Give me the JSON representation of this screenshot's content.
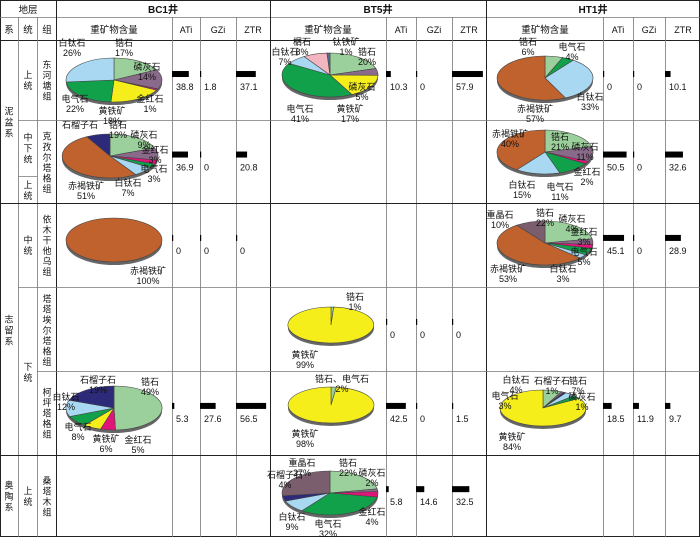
{
  "header": {
    "strata": "地层",
    "system": "系",
    "series": "统",
    "group": "组",
    "wells": [
      "BC1井",
      "BT5井",
      "HT1井"
    ],
    "content_label": "重矿物含量",
    "idx": [
      "ATi",
      "GZi",
      "ZTR"
    ]
  },
  "systems": [
    {
      "id": "ni",
      "text": "泥盆系"
    },
    {
      "id": "zhi",
      "text": "志留系"
    },
    {
      "id": "ao",
      "text": "奥陶系"
    }
  ],
  "series_cells": [
    {
      "id": "shang1",
      "text": "上统"
    },
    {
      "id": "zhongxia",
      "text": "中下统"
    },
    {
      "id": "shang2",
      "text": "上统"
    },
    {
      "id": "zhong",
      "text": "中统"
    },
    {
      "id": "xia",
      "text": "下统"
    },
    {
      "id": "shang3",
      "text": "上统"
    }
  ],
  "groups": [
    {
      "id": "g1",
      "text": "东河塘组"
    },
    {
      "id": "g2",
      "text": "克孜尔塔格组"
    },
    {
      "id": "g3",
      "text": "依木干他乌组"
    },
    {
      "id": "g4",
      "text": "塔塔埃尔塔格组"
    },
    {
      "id": "g5",
      "text": "柯坪塔格组"
    },
    {
      "id": "g6",
      "text": "桑塔木组"
    }
  ],
  "legend_colors": {
    "锆石": "#9bcf9b",
    "磷灰石": "#8a6a8a",
    "金红石": "#e0157a",
    "黄铁矿": "#f5ee1a",
    "电气石": "#11a14a",
    "白钛石": "#a9d8f2",
    "赤褐铁矿": "#c0622e",
    "石榴子石": "#2d2a7a",
    "钛铁矿": "#5b6a8a",
    "榍石": "#f2b6c0",
    "重晶石": "#7a5e6e"
  },
  "chart_data": [
    {
      "type": "pie",
      "id": "BC1_东河塘组",
      "well": "BC1井",
      "group": "东河塘组",
      "slices": [
        {
          "label": "锆石",
          "value": 17,
          "text": "17%"
        },
        {
          "label": "磷灰石",
          "value": 14,
          "text": "14%"
        },
        {
          "label": "金红石",
          "value": 1,
          "text": "1%"
        },
        {
          "label": "黄铁矿",
          "value": 18,
          "text": "18%"
        },
        {
          "label": "电气石",
          "value": 22,
          "text": "22%"
        },
        {
          "label": "白钛石",
          "value": 26,
          "text": "26%"
        }
      ],
      "indices": {
        "ATi": 38.8,
        "GZi": 1.8,
        "ZTR": 37.1
      }
    },
    {
      "type": "pie",
      "id": "BT5_东河塘组",
      "well": "BT5井",
      "group": "东河塘组",
      "slices": [
        {
          "label": "锆石",
          "value": 20,
          "text": "20%"
        },
        {
          "label": "磷灰石",
          "value": 5,
          "text": "5%"
        },
        {
          "label": "黄铁矿",
          "value": 17,
          "text": "17%"
        },
        {
          "label": "电气石",
          "value": 41,
          "text": "41%"
        },
        {
          "label": "白钛石",
          "value": 7,
          "text": "7%"
        },
        {
          "label": "榍石",
          "value": 8,
          "text": "8%"
        },
        {
          "label": "钛铁矿",
          "value": 1,
          "text": "1%"
        }
      ],
      "indices": {
        "ATi": 10.3,
        "GZi": 0,
        "ZTR": 57.9
      }
    },
    {
      "type": "pie",
      "id": "HT1_东河塘组",
      "well": "HT1井",
      "group": "东河塘组",
      "slices": [
        {
          "label": "锆石",
          "value": 6,
          "text": "6%"
        },
        {
          "label": "电气石",
          "value": 4,
          "text": "4%"
        },
        {
          "label": "白钛石",
          "value": 33,
          "text": "33%"
        },
        {
          "label": "赤褐铁矿",
          "value": 57,
          "text": "57%"
        }
      ],
      "indices": {
        "ATi": 0,
        "GZi": 0,
        "ZTR": 10.1
      }
    },
    {
      "type": "pie",
      "id": "BC1_克孜尔塔格组",
      "well": "BC1井",
      "group": "克孜尔塔格组",
      "slices": [
        {
          "label": "锆石",
          "value": 19,
          "text": "19%"
        },
        {
          "label": "磷灰石",
          "value": 9,
          "text": "9%"
        },
        {
          "label": "金红石",
          "value": 3,
          "text": "3%"
        },
        {
          "label": "电气石",
          "value": 3,
          "text": "3%"
        },
        {
          "label": "白钛石",
          "value": 7,
          "text": "7%"
        },
        {
          "label": "赤褐铁矿",
          "value": 51,
          "text": "51%"
        },
        {
          "label": "石榴子石",
          "value": 8,
          "text": ""
        }
      ],
      "indices": {
        "ATi": 36.9,
        "GZi": 0,
        "ZTR": 20.8
      }
    },
    {
      "type": "pie",
      "id": "HT1_克孜尔塔格组",
      "well": "HT1井",
      "group": "克孜尔塔格组",
      "slices": [
        {
          "label": "锆石",
          "value": 21,
          "text": "21%"
        },
        {
          "label": "磷灰石",
          "value": 11,
          "text": "11%"
        },
        {
          "label": "金红石",
          "value": 2,
          "text": "2%"
        },
        {
          "label": "电气石",
          "value": 11,
          "text": "11%"
        },
        {
          "label": "白钛石",
          "value": 15,
          "text": "15%"
        },
        {
          "label": "赤褐铁矿",
          "value": 40,
          "text": "40%"
        }
      ],
      "indices": {
        "ATi": 50.5,
        "GZi": 0,
        "ZTR": 32.6
      }
    },
    {
      "type": "pie",
      "id": "BC1_依木干他乌组",
      "well": "BC1井",
      "group": "依木干他乌组",
      "slices": [
        {
          "label": "赤褐铁矿",
          "value": 100,
          "text": "100%"
        }
      ],
      "indices": {
        "ATi": 0,
        "GZi": 0,
        "ZTR": 0
      }
    },
    {
      "type": "pie",
      "id": "HT1_依木干他乌组",
      "well": "HT1井",
      "group": "依木干他乌组",
      "slices": [
        {
          "label": "锆石",
          "value": 22,
          "text": "22%"
        },
        {
          "label": "磷灰石",
          "value": 4,
          "text": "4%"
        },
        {
          "label": "金红石",
          "value": 3,
          "text": "3%"
        },
        {
          "label": "电气石",
          "value": 5,
          "text": "5%"
        },
        {
          "label": "白钛石",
          "value": 3,
          "text": "3%"
        },
        {
          "label": "赤褐铁矿",
          "value": 53,
          "text": "53%"
        },
        {
          "label": "重晶石",
          "value": 10,
          "text": "10%"
        }
      ],
      "indices": {
        "ATi": 45.1,
        "GZi": 0,
        "ZTR": 28.9
      }
    },
    {
      "type": "pie",
      "id": "BT5_塔塔埃尔塔格组",
      "well": "BT5井",
      "group": "塔塔埃尔塔格组",
      "slices": [
        {
          "label": "锆石",
          "value": 1,
          "text": "1%"
        },
        {
          "label": "黄铁矿",
          "value": 99,
          "text": "99%"
        }
      ],
      "indices": {
        "ATi": 0,
        "GZi": 0,
        "ZTR": 0
      }
    },
    {
      "type": "pie",
      "id": "BC1_柯坪塔格组",
      "well": "BC1井",
      "group": "柯坪塔格组",
      "slices": [
        {
          "label": "锆石",
          "value": 49,
          "text": "49%"
        },
        {
          "label": "金红石",
          "value": 5,
          "text": "5%"
        },
        {
          "label": "黄铁矿",
          "value": 6,
          "text": "6%"
        },
        {
          "label": "电气石",
          "value": 8,
          "text": "8%"
        },
        {
          "label": "白钛石",
          "value": 12,
          "text": "12%"
        },
        {
          "label": "石榴子石",
          "value": 19,
          "text": "19%"
        }
      ],
      "indices": {
        "ATi": 5.3,
        "GZi": 27.6,
        "ZTR": 56.5
      }
    },
    {
      "type": "pie",
      "id": "BT5_柯坪塔格组",
      "well": "BT5井",
      "group": "柯坪塔格组",
      "slices": [
        {
          "label": "锆石、电气石",
          "value": 2,
          "text": "2%"
        },
        {
          "label": "黄铁矿",
          "value": 98,
          "text": "98%"
        }
      ],
      "indices": {
        "ATi": 42.5,
        "GZi": 0,
        "ZTR": 1.5
      }
    },
    {
      "type": "pie",
      "id": "HT1_柯坪塔格组",
      "well": "HT1井",
      "group": "柯坪塔格组",
      "slices": [
        {
          "label": "锆石",
          "value": 7,
          "text": "7%"
        },
        {
          "label": "磷灰石",
          "value": 1,
          "text": "1%"
        },
        {
          "label": "石榴子石",
          "value": 1,
          "text": "1%"
        },
        {
          "label": "白钛石",
          "value": 4,
          "text": "4%"
        },
        {
          "label": "电气石",
          "value": 3,
          "text": "3%"
        },
        {
          "label": "黄铁矿",
          "value": 84,
          "text": "84%"
        }
      ],
      "indices": {
        "ATi": 18.5,
        "GZi": 11.9,
        "ZTR": 9.7
      }
    },
    {
      "type": "pie",
      "id": "BT5_桑塔木组",
      "well": "BT5井",
      "group": "桑塔木组",
      "slices": [
        {
          "label": "锆石",
          "value": 22,
          "text": "22%"
        },
        {
          "label": "磷灰石",
          "value": 2,
          "text": "2%"
        },
        {
          "label": "金红石",
          "value": 4,
          "text": "4%"
        },
        {
          "label": "电气石",
          "value": 32,
          "text": "32%"
        },
        {
          "label": "白钛石",
          "value": 9,
          "text": "9%"
        },
        {
          "label": "石榴子石",
          "value": 4,
          "text": "4%"
        },
        {
          "label": "重晶石",
          "value": 27,
          "text": "27%"
        }
      ],
      "indices": {
        "ATi": 5.8,
        "GZi": 14.6,
        "ZTR": 32.5
      }
    }
  ],
  "index_bar_max": 60
}
